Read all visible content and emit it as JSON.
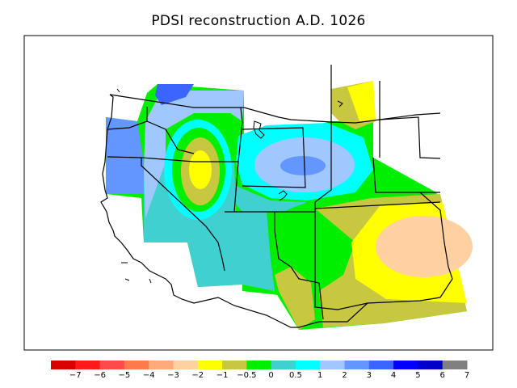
{
  "title": "PDSI reconstruction A.D. 1026",
  "colors": {
    "frame": "#000000",
    "border_lines": "#000000",
    "no_data": "#ffffff"
  },
  "legend": {
    "swatch_colors": [
      "#d90000",
      "#ff1a1a",
      "#ff4a4a",
      "#ff7a4a",
      "#ffaa7a",
      "#ffd0a0",
      "#ffff00",
      "#c8c840",
      "#00ee00",
      "#40d0d0",
      "#00ffff",
      "#a0c8ff",
      "#6496ff",
      "#3c64ff",
      "#0000ff",
      "#0000c8",
      "#808080"
    ],
    "labels": [
      "−7",
      "−6",
      "−5",
      "−4",
      "−3",
      "−2",
      "−1",
      "−0.5",
      "0",
      "0.5",
      "1",
      "2",
      "3",
      "4",
      "5",
      "6",
      "7"
    ]
  }
}
